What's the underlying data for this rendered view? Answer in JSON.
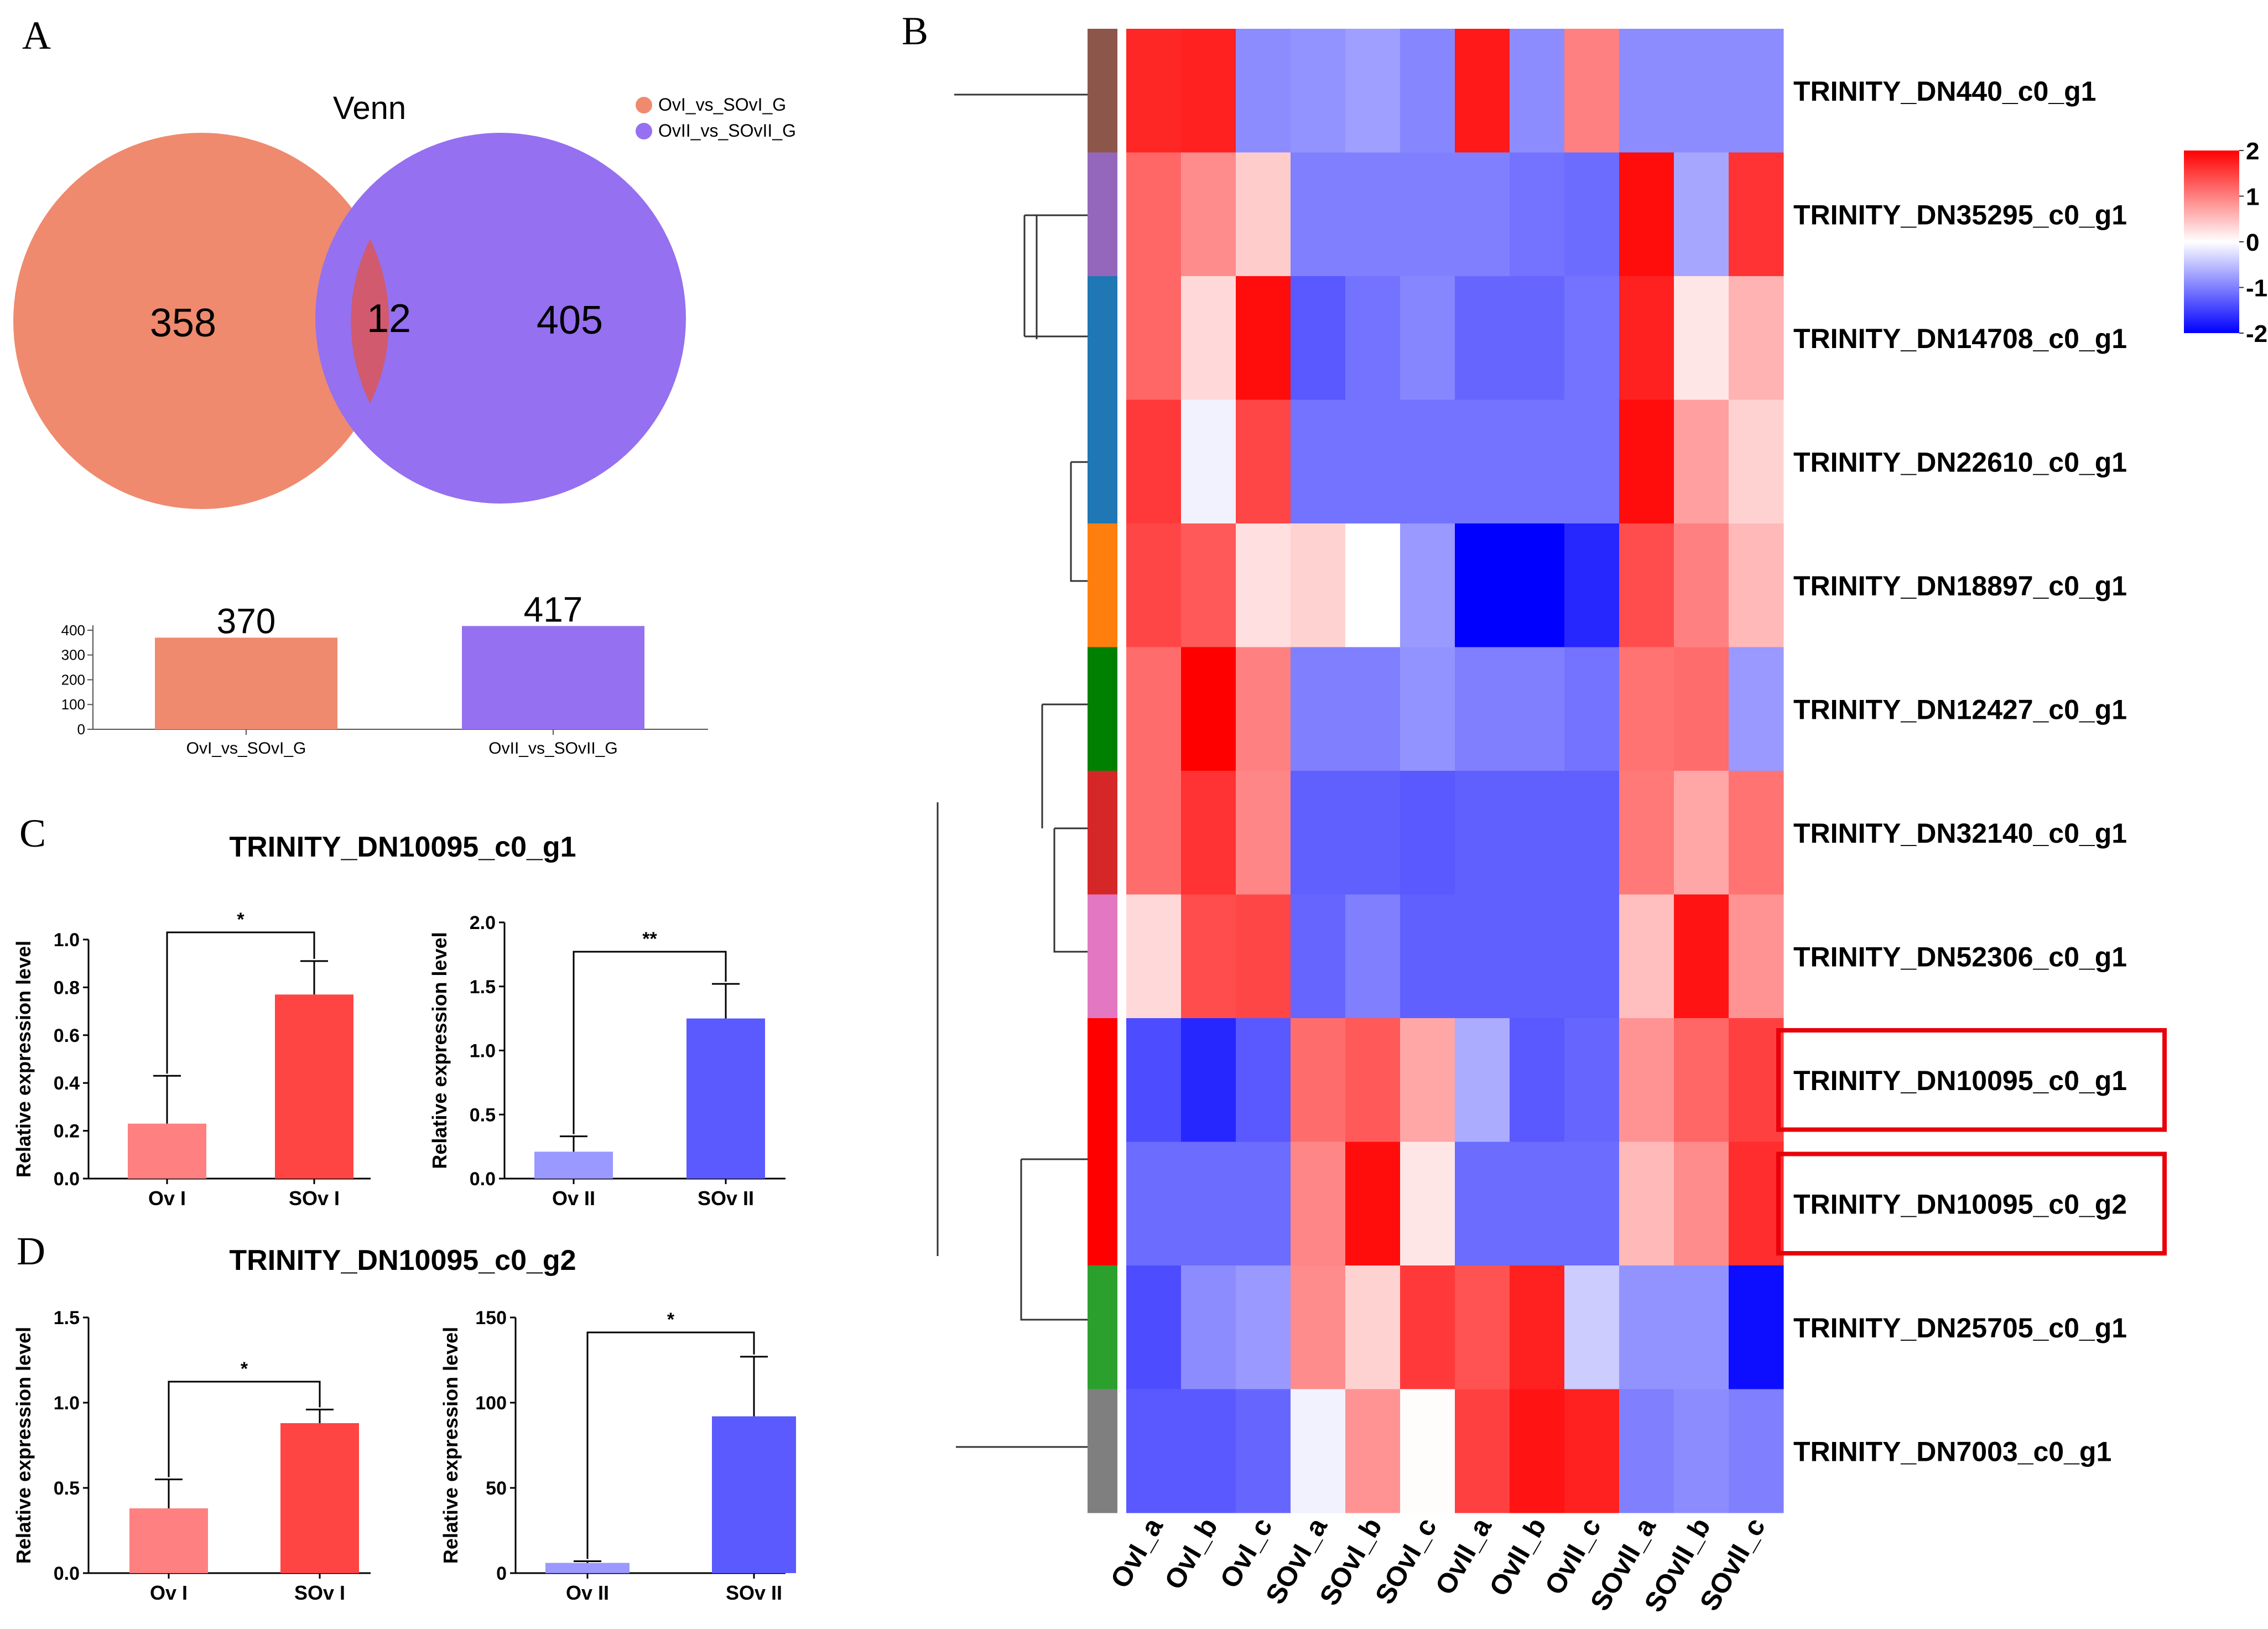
{
  "panels": {
    "A": {
      "letter": "A",
      "venn": {
        "title": "Venn",
        "left_only": "358",
        "overlap": "12",
        "right_only": "405",
        "legend": [
          {
            "label": "OvI_vs_SOvI_G",
            "color": "#ef8a6e"
          },
          {
            "label": "OvII_vs_SOvII_G",
            "color": "#9570f0"
          }
        ]
      },
      "set_size_bars": {
        "chart_data": {
          "type": "bar",
          "categories": [
            "OvI_vs_SOvI_G",
            "OvII_vs_SOvII_G"
          ],
          "values": [
            370,
            417
          ],
          "value_labels": [
            "370",
            "417"
          ],
          "yticks": [
            "0",
            "100",
            "200",
            "300",
            "400"
          ],
          "ylim": [
            0,
            420
          ],
          "colors": [
            "#ef8a6e",
            "#9570f0"
          ]
        }
      }
    },
    "B": {
      "letter": "B",
      "heatmap": {
        "chart_data": {
          "type": "heatmap",
          "columns": [
            "OvI_a",
            "OvI_b",
            "OvI_c",
            "SOvI_a",
            "SOvI_b",
            "SOvI_c",
            "OvII_a",
            "OvII_b",
            "OvII_c",
            "SOvII_a",
            "SOvII_b",
            "SOvII_c"
          ],
          "rows": [
            "TRINITY_DN440_c0_g1",
            "TRINITY_DN35295_c0_g1",
            "TRINITY_DN14708_c0_g1",
            "TRINITY_DN22610_c0_g1",
            "TRINITY_DN18897_c0_g1",
            "TRINITY_DN12427_c0_g1",
            "TRINITY_DN32140_c0_g1",
            "TRINITY_DN52306_c0_g1",
            "TRINITY_DN10095_c0_g1",
            "TRINITY_DN10095_c0_g2",
            "TRINITY_DN25705_c0_g1",
            "TRINITY_DN7003_c0_g1"
          ],
          "values": [
            [
              1.7,
              1.75,
              -0.9,
              -0.85,
              -0.75,
              -0.95,
              1.8,
              -0.9,
              1.0,
              -0.9,
              -0.9,
              -0.9
            ],
            [
              1.2,
              0.9,
              0.4,
              -1.0,
              -1.0,
              -1.0,
              -1.0,
              -1.1,
              -1.15,
              1.9,
              -0.7,
              1.6
            ],
            [
              1.2,
              0.3,
              1.9,
              -1.3,
              -1.1,
              -0.95,
              -1.2,
              -1.2,
              -1.1,
              1.75,
              0.2,
              0.6
            ],
            [
              1.55,
              -0.1,
              1.45,
              -1.1,
              -1.1,
              -1.1,
              -1.1,
              -1.1,
              -1.1,
              1.9,
              0.75,
              0.35
            ],
            [
              1.45,
              1.3,
              0.25,
              0.35,
              0.0,
              -0.8,
              -2.0,
              -2.0,
              -1.7,
              1.4,
              1.0,
              0.55
            ],
            [
              1.15,
              2.0,
              1.0,
              -1.0,
              -1.0,
              -0.85,
              -1.0,
              -1.0,
              -1.1,
              1.1,
              1.15,
              -0.8
            ],
            [
              1.15,
              1.6,
              0.95,
              -1.25,
              -1.25,
              -1.3,
              -1.25,
              -1.25,
              -1.25,
              1.05,
              0.7,
              1.1
            ],
            [
              0.3,
              1.4,
              1.45,
              -1.2,
              -1.0,
              -1.25,
              -1.25,
              -1.25,
              -1.25,
              0.5,
              1.85,
              0.85
            ],
            [
              -1.4,
              -1.7,
              -1.3,
              1.15,
              1.3,
              0.7,
              -0.65,
              -1.3,
              -1.2,
              0.85,
              1.2,
              1.5
            ],
            [
              -1.15,
              -1.15,
              -1.15,
              0.95,
              1.9,
              0.2,
              -1.15,
              -1.15,
              -1.15,
              0.55,
              0.9,
              1.65
            ],
            [
              -1.4,
              -0.9,
              -0.8,
              0.9,
              0.35,
              1.55,
              1.35,
              1.75,
              -0.4,
              -0.85,
              -0.85,
              -1.9
            ],
            [
              -1.3,
              -1.3,
              -1.2,
              -0.1,
              0.85,
              0.02,
              1.5,
              1.85,
              1.75,
              -1.0,
              -0.9,
              -1.0
            ]
          ],
          "cluster_colors": [
            "#8c564b",
            "#9467bd",
            "#1f77b4",
            "#1f77b4",
            "#ff7f0e",
            "#008000",
            "#d62728",
            "#e377c2",
            "#ff0000",
            "#ff0000",
            "#2ca02c",
            "#7f7f7f"
          ],
          "highlighted_rows": [
            "TRINITY_DN10095_c0_g1",
            "TRINITY_DN10095_c0_g2"
          ],
          "colorbar": {
            "ticks": [
              "2",
              "1",
              "0",
              "-1",
              "-2"
            ],
            "range": [
              -2,
              2
            ],
            "colors": [
              "#0000ff",
              "#ffffff",
              "#ff0000"
            ]
          },
          "grid": false
        }
      }
    },
    "C": {
      "letter": "C",
      "title": "TRINITY_DN10095_c0_g1",
      "charts": [
        {
          "chart_data": {
            "type": "bar",
            "categories": [
              "Ov I",
              "SOv I"
            ],
            "values": [
              0.23,
              0.77
            ],
            "errors": [
              0.2,
              0.14
            ],
            "ylabel": "Relative expression level",
            "ylim": [
              0,
              1.0
            ],
            "yticks": [
              "0.0",
              "0.2",
              "0.4",
              "0.6",
              "0.8",
              "1.0"
            ],
            "significance": "*",
            "colors": [
              "#ff8080",
              "#ff4444"
            ]
          }
        },
        {
          "chart_data": {
            "type": "bar",
            "categories": [
              "Ov II",
              "SOv II"
            ],
            "values": [
              0.21,
              1.25
            ],
            "errors": [
              0.12,
              0.27
            ],
            "ylabel": "Relative expression level",
            "ylim": [
              0,
              2.0
            ],
            "yticks": [
              "0.0",
              "0.5",
              "1.0",
              "1.5",
              "2.0"
            ],
            "significance": "**",
            "colors": [
              "#9999ff",
              "#5a5aff"
            ]
          }
        }
      ]
    },
    "D": {
      "letter": "D",
      "title": "TRINITY_DN10095_c0_g2",
      "charts": [
        {
          "chart_data": {
            "type": "bar",
            "categories": [
              "Ov I",
              "SOv I"
            ],
            "values": [
              0.38,
              0.88
            ],
            "errors": [
              0.17,
              0.08
            ],
            "ylabel": "Relative expression level",
            "ylim": [
              0,
              1.5
            ],
            "yticks": [
              "0.0",
              "0.5",
              "1.0",
              "1.5"
            ],
            "significance": "*",
            "colors": [
              "#ff8080",
              "#ff4444"
            ]
          }
        },
        {
          "chart_data": {
            "type": "bar",
            "categories": [
              "Ov II",
              "SOv II"
            ],
            "values": [
              6,
              92
            ],
            "errors": [
              1,
              35
            ],
            "ylabel": "Relative expression level",
            "ylim": [
              0,
              150
            ],
            "yticks": [
              "0",
              "50",
              "100",
              "150"
            ],
            "significance": "*",
            "colors": [
              "#9999ff",
              "#5a5aff"
            ]
          }
        }
      ]
    }
  }
}
